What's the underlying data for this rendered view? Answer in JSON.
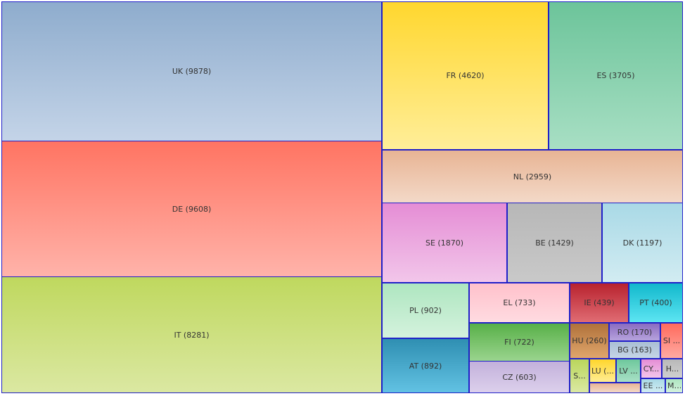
{
  "chart_data": {
    "type": "treemap",
    "title": "",
    "items": [
      {
        "label": "UK (9878)",
        "code": "UK",
        "value": 9878,
        "color_top": "#8eaccd",
        "color_bottom": "#c4d4e8"
      },
      {
        "label": "DE (9608)",
        "code": "DE",
        "value": 9608,
        "color_top": "#ff7462",
        "color_bottom": "#ffb3aa"
      },
      {
        "label": "IT (8281)",
        "code": "IT",
        "value": 8281,
        "color_top": "#bfd85e",
        "color_bottom": "#dbe8a2"
      },
      {
        "label": "FR (4620)",
        "code": "FR",
        "value": 4620,
        "color_top": "#ffd72e",
        "color_bottom": "#ffee99"
      },
      {
        "label": "ES (3705)",
        "code": "ES",
        "value": 3705,
        "color_top": "#6cc49a",
        "color_bottom": "#a8dfc4"
      },
      {
        "label": "NL (2959)",
        "code": "NL",
        "value": 2959,
        "color_top": "#e8b494",
        "color_bottom": "#f3d9c8"
      },
      {
        "label": "SE (1870)",
        "code": "SE",
        "value": 1870,
        "color_top": "#e58dd5",
        "color_bottom": "#f2c6ea"
      },
      {
        "label": "BE (1429)",
        "code": "BE",
        "value": 1429,
        "color_top": "#b7b7b7",
        "color_bottom": "#c9c9c9"
      },
      {
        "label": "DK (1197)",
        "code": "DK",
        "value": 1197,
        "color_top": "#a9d9e6",
        "color_bottom": "#d2ecf2"
      },
      {
        "label": "PL (902)",
        "code": "PL",
        "value": 902,
        "color_top": "#aee6c0",
        "color_bottom": "#d4f2dd"
      },
      {
        "label": "AT (892)",
        "code": "AT",
        "value": 892,
        "color_top": "#2f8fb2",
        "color_bottom": "#62c2e3"
      },
      {
        "label": "EL (733)",
        "code": "EL",
        "value": 733,
        "color_top": "#ffc1cb",
        "color_bottom": "#ffdbe1"
      },
      {
        "label": "FI (722)",
        "code": "FI",
        "value": 722,
        "color_top": "#58b048",
        "color_bottom": "#9ad48e"
      },
      {
        "label": "CZ (603)",
        "code": "CZ",
        "value": 603,
        "color_top": "#c3b1db",
        "color_bottom": "#dcd0ec"
      },
      {
        "label": "IE (439)",
        "code": "IE",
        "value": 439,
        "color_top": "#b8222e",
        "color_bottom": "#e06c73"
      },
      {
        "label": "PT (400)",
        "code": "PT",
        "value": 400,
        "color_top": "#11b8cc",
        "color_bottom": "#5de5f2"
      },
      {
        "label": "HU (260)",
        "code": "HU",
        "value": 260,
        "color_top": "#b0713a",
        "color_bottom": "#e0a66c"
      },
      {
        "label": "RO (170)",
        "code": "RO",
        "value": 170,
        "color_top": "#8a6cc0",
        "color_bottom": "#b7a3dd"
      },
      {
        "label": "BG (163)",
        "code": "BG",
        "value": 163,
        "color_top": "#a9bed4",
        "color_bottom": "#c6d6e6"
      },
      {
        "label": "SI ...",
        "code": "SI",
        "value": null,
        "color_top": "#ff6a5c",
        "color_bottom": "#ffaaa2"
      },
      {
        "label": "S...",
        "code": "S",
        "value": null,
        "color_top": "#bad65c",
        "color_bottom": "#dbe9a3"
      },
      {
        "label": "LU (...",
        "code": "LU",
        "value": null,
        "color_top": "#ffd62c",
        "color_bottom": "#ffec94"
      },
      {
        "label": "LV ...",
        "code": "LV",
        "value": null,
        "color_top": "#6ec89c",
        "color_bottom": "#a9e0c6"
      },
      {
        "label": "",
        "code": "",
        "value": null,
        "color_top": "#e8b494",
        "color_bottom": "#f3d9c8"
      },
      {
        "label": "CY...",
        "code": "CY",
        "value": null,
        "color_top": "#e58dd5",
        "color_bottom": "#f2c6ea"
      },
      {
        "label": "H...",
        "code": "H",
        "value": null,
        "color_top": "#b9b9b9",
        "color_bottom": "#cfcfcf"
      },
      {
        "label": "EE ...",
        "code": "EE",
        "value": null,
        "color_top": "#a9d9e6",
        "color_bottom": "#d2ecf2"
      },
      {
        "label": "M...",
        "code": "M",
        "value": null,
        "color_top": "#aee6c0",
        "color_bottom": "#d4f2dd"
      }
    ]
  }
}
